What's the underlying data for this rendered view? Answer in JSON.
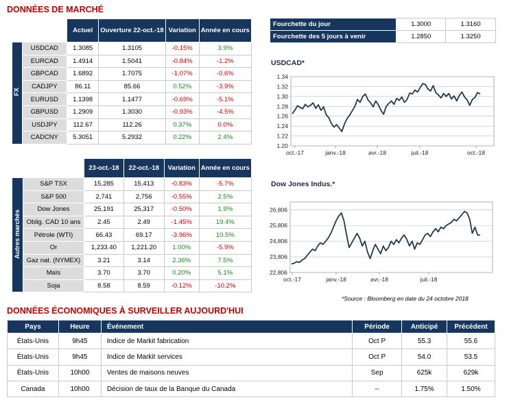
{
  "market_title": "DONNÉES DE MARCHÉ",
  "fx": {
    "section_label": "FX",
    "headers": [
      "Actuel",
      "Ouverture 22-oct.-18",
      "Variation",
      "Année en cours"
    ],
    "rows": [
      {
        "name": "USDCAD",
        "c1": "1.3085",
        "c2": "1.3105",
        "var": "-0.15%",
        "ytd": "3.9%",
        "var_sign": "neg",
        "ytd_sign": "pos"
      },
      {
        "name": "EURCAD",
        "c1": "1.4914",
        "c2": "1.5041",
        "var": "-0.84%",
        "ytd": "-1.2%",
        "var_sign": "neg",
        "ytd_sign": "neg"
      },
      {
        "name": "GBPCAD",
        "c1": "1.6892",
        "c2": "1.7075",
        "var": "-1.07%",
        "ytd": "-0.6%",
        "var_sign": "neg",
        "ytd_sign": "neg"
      },
      {
        "name": "CADJPY",
        "c1": "86.11",
        "c2": "85.66",
        "var": "0.52%",
        "ytd": "-3.9%",
        "var_sign": "pos",
        "ytd_sign": "neg"
      },
      {
        "name": "EURUSD",
        "c1": "1.1398",
        "c2": "1.1477",
        "var": "-0.69%",
        "ytd": "-5.1%",
        "var_sign": "neg",
        "ytd_sign": "neg"
      },
      {
        "name": "GBPUSD",
        "c1": "1.2909",
        "c2": "1.3030",
        "var": "-0.93%",
        "ytd": "-4.5%",
        "var_sign": "neg",
        "ytd_sign": "neg"
      },
      {
        "name": "USDJPY",
        "c1": "112.67",
        "c2": "112.26",
        "var": "0.37%",
        "ytd": "0.0%",
        "var_sign": "pos",
        "ytd_sign": "neg"
      },
      {
        "name": "CADCNY",
        "c1": "5.3051",
        "c2": "5.2932",
        "var": "0.22%",
        "ytd": "2.4%",
        "var_sign": "pos",
        "ytd_sign": "pos"
      }
    ]
  },
  "other": {
    "section_label": "Autres marchés",
    "headers": [
      "23-oct.-18",
      "22-oct.-18",
      "Variation",
      "Année en cours"
    ],
    "rows": [
      {
        "name": "S&P TSX",
        "c1": "15,285",
        "c2": "15,413",
        "var": "-0.83%",
        "ytd": "-5.7%",
        "var_sign": "neg",
        "ytd_sign": "neg"
      },
      {
        "name": "S&P 500",
        "c1": "2,741",
        "c2": "2,756",
        "var": "-0.55%",
        "ytd": "2.5%",
        "var_sign": "neg",
        "ytd_sign": "pos"
      },
      {
        "name": "Dow Jones",
        "c1": "25,191",
        "c2": "25,317",
        "var": "-0.50%",
        "ytd": "1.9%",
        "var_sign": "neg",
        "ytd_sign": "pos"
      },
      {
        "name": "Oblig. CAD 10 ans",
        "c1": "2.45",
        "c2": "2.49",
        "var": "-1.45%",
        "ytd": "19.4%",
        "var_sign": "neg",
        "ytd_sign": "pos"
      },
      {
        "name": "Pétrole (WTI)",
        "c1": "66.43",
        "c2": "69.17",
        "var": "-3.96%",
        "ytd": "10.5%",
        "var_sign": "neg",
        "ytd_sign": "pos"
      },
      {
        "name": "Or",
        "c1": "1,233.40",
        "c2": "1,221.20",
        "var": "1.00%",
        "ytd": "-5.9%",
        "var_sign": "pos",
        "ytd_sign": "neg"
      },
      {
        "name": "Gaz nat. (NYMEX)",
        "c1": "3.21",
        "c2": "3.14",
        "var": "2.36%",
        "ytd": "7.5%",
        "var_sign": "pos",
        "ytd_sign": "pos"
      },
      {
        "name": "Maïs",
        "c1": "3.70",
        "c2": "3.70",
        "var": "0.20%",
        "ytd": "5.1%",
        "var_sign": "pos",
        "ytd_sign": "pos"
      },
      {
        "name": "Soja",
        "c1": "8.58",
        "c2": "8.59",
        "var": "-0.12%",
        "ytd": "-10.2%",
        "var_sign": "neg",
        "ytd_sign": "neg"
      }
    ]
  },
  "range": [
    {
      "label": "Fourchette du jour",
      "low": "1.3000",
      "high": "1.3160"
    },
    {
      "label": "Fourchette des 5 jours à venir",
      "low": "1.2850",
      "high": "1.3250"
    }
  ],
  "source_note": "*Source : Bloomberg en date du  24 octobre 2018",
  "eco": {
    "title": "DONNÉES ÉCONOMIQUES À SURVEILLER AUJOURD'HUI",
    "headers": [
      "Pays",
      "Heure",
      "Événement",
      "Période",
      "Anticipé",
      "Précédent"
    ],
    "rows": [
      {
        "pays": "États-Unis",
        "heure": "9h45",
        "evenement": "Indice de Markit fabrication",
        "periode": "Oct P",
        "anticipe": "55.3",
        "precedent": "55.6"
      },
      {
        "pays": "États-Unis",
        "heure": "9h45",
        "evenement": "Indice de Markit services",
        "periode": "Oct P",
        "anticipe": "54.0",
        "precedent": "53.5"
      },
      {
        "pays": "États-Unis",
        "heure": "10h00",
        "evenement": "Ventes de maisons neuves",
        "periode": "Sep",
        "anticipe": "625k",
        "precedent": "629k"
      },
      {
        "pays": "Canada",
        "heure": "10h00",
        "evenement": "Décision de taux de la Banque du Canada",
        "periode": "--",
        "anticipe": "1.75%",
        "precedent": "1.50%"
      }
    ]
  },
  "colors": {
    "header_bg": "#17365d",
    "negative": "#d00000",
    "positive": "#1a8a1a",
    "title_red": "#c00000",
    "line": "#1b3a4b"
  },
  "chart_data": [
    {
      "type": "line",
      "title": "USDCAD*",
      "ylim": [
        1.2,
        1.34
      ],
      "yticks": [
        "1.34",
        "1.32",
        "1.30",
        "1.28",
        "1.26",
        "1.24",
        "1.22",
        "1.20"
      ],
      "xticks": [
        "oct.-17",
        "janv.-18",
        "avr.-18",
        "juil.-18",
        "oct.-18"
      ],
      "series": [
        {
          "values": [
            1.265,
            1.272,
            1.281,
            1.278,
            1.275,
            1.284,
            1.279,
            1.282,
            1.287,
            1.276,
            1.283,
            1.272,
            1.279,
            1.263,
            1.257,
            1.245,
            1.238,
            1.243,
            1.236,
            1.229,
            1.244,
            1.255,
            1.262,
            1.271,
            1.28,
            1.294,
            1.288,
            1.3,
            1.305,
            1.293,
            1.287,
            1.279,
            1.291,
            1.283,
            1.272,
            1.264,
            1.28,
            1.286,
            1.291,
            1.284,
            1.296,
            1.292,
            1.299,
            1.288,
            1.294,
            1.307,
            1.305,
            1.313,
            1.309,
            1.318,
            1.326,
            1.324,
            1.315,
            1.311,
            1.322,
            1.308,
            1.303,
            1.297,
            1.306,
            1.3,
            1.306,
            1.295,
            1.301,
            1.291,
            1.302,
            1.309,
            1.299,
            1.293,
            1.282,
            1.294,
            1.298,
            1.308,
            1.305
          ]
        }
      ]
    },
    {
      "type": "line",
      "title": "Dow Jones Indus.*",
      "ylim": [
        22806,
        27300
      ],
      "yticks": [
        "26,806",
        "25,806",
        "24,806",
        "23,806",
        "22,806"
      ],
      "xticks": [
        "oct.-17",
        "janv.-18",
        "avr.-18",
        "juil.-18"
      ],
      "series": [
        {
          "values": [
            23350,
            23400,
            23500,
            23450,
            23600,
            23700,
            23900,
            24100,
            24300,
            24200,
            24500,
            24700,
            24600,
            24800,
            25000,
            25300,
            25700,
            26100,
            26400,
            26600,
            26100,
            25200,
            24400,
            24700,
            25000,
            25300,
            25000,
            24500,
            24800,
            24100,
            23700,
            24200,
            24600,
            24300,
            24000,
            24500,
            24200,
            24400,
            24800,
            24600,
            24900,
            24700,
            25000,
            25200,
            24900,
            24500,
            24800,
            24300,
            24700,
            24600,
            24900,
            25200,
            25300,
            25100,
            25400,
            25600,
            25400,
            25700,
            25600,
            25800,
            25900,
            26000,
            26200,
            26100,
            26300,
            26500,
            26700,
            26600,
            26200,
            25300,
            25700,
            25200,
            25191
          ]
        }
      ]
    }
  ]
}
